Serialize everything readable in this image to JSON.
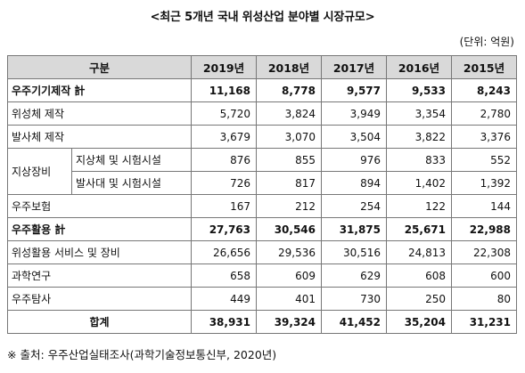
{
  "title": "<최근 5개년 국내 위성산업 분야별 시장규모>",
  "unit": "(단위: 억원)",
  "header": {
    "category": "구분",
    "years": [
      "2019년",
      "2018년",
      "2017년",
      "2016년",
      "2015년"
    ]
  },
  "rows": {
    "space_manufacturing": {
      "label": "우주기기제작 計",
      "values": [
        "11,168",
        "8,778",
        "9,577",
        "9,533",
        "8,243"
      ]
    },
    "satellite": {
      "label": "위성체 제작",
      "values": [
        "5,720",
        "3,824",
        "3,949",
        "3,354",
        "2,780"
      ]
    },
    "launcher": {
      "label": "발사체 제작",
      "values": [
        "3,679",
        "3,070",
        "3,504",
        "3,822",
        "3,376"
      ]
    },
    "ground_group": "지상장비",
    "ground_sat": {
      "label": "지상체 및 시험시설",
      "values": [
        "876",
        "855",
        "976",
        "833",
        "552"
      ]
    },
    "ground_launch": {
      "label": "발사대 및 시험시설",
      "values": [
        "726",
        "817",
        "894",
        "1,402",
        "1,392"
      ]
    },
    "insurance": {
      "label": "우주보험",
      "values": [
        "167",
        "212",
        "254",
        "122",
        "144"
      ]
    },
    "space_utilization": {
      "label": "우주활용 計",
      "values": [
        "27,763",
        "30,546",
        "31,875",
        "25,671",
        "22,988"
      ]
    },
    "sat_services": {
      "label": "위성활용 서비스 및 장비",
      "values": [
        "26,656",
        "29,536",
        "30,516",
        "24,813",
        "22,308"
      ]
    },
    "research": {
      "label": "과학연구",
      "values": [
        "658",
        "609",
        "629",
        "608",
        "600"
      ]
    },
    "exploration": {
      "label": "우주탐사",
      "values": [
        "449",
        "401",
        "730",
        "250",
        "80"
      ]
    },
    "total": {
      "label": "합계",
      "values": [
        "38,931",
        "39,324",
        "41,452",
        "35,204",
        "31,231"
      ]
    }
  },
  "source": "※ 출처: 우주산업실태조사(과학기술정보통신부, 2020년)"
}
